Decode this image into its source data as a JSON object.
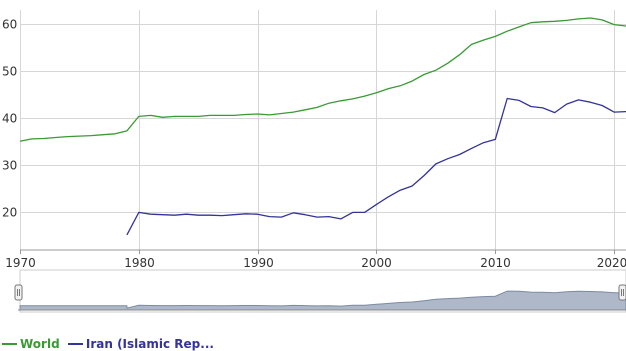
{
  "chart_data": {
    "type": "line",
    "x_ticks": [
      1970,
      1980,
      1990,
      2000,
      2010,
      2020
    ],
    "x_tick_labels": [
      "1970",
      "1980",
      "1990",
      "2000",
      "2010",
      "2020"
    ],
    "y_ticks": [
      20,
      30,
      40,
      50,
      60
    ],
    "y_tick_labels": [
      "20",
      "30",
      "40",
      "50",
      "60"
    ],
    "xlim": [
      1970,
      2021
    ],
    "ylim": [
      12,
      63
    ],
    "grid": true,
    "legend_position": "bottom-left",
    "series": [
      {
        "name": "World",
        "color": "#3a9a34",
        "x": [
          1970,
          1971,
          1972,
          1973,
          1974,
          1975,
          1976,
          1977,
          1978,
          1979,
          1980,
          1981,
          1982,
          1983,
          1984,
          1985,
          1986,
          1987,
          1988,
          1989,
          1990,
          1991,
          1992,
          1993,
          1994,
          1995,
          1996,
          1997,
          1998,
          1999,
          2000,
          2001,
          2002,
          2003,
          2004,
          2005,
          2006,
          2007,
          2008,
          2009,
          2010,
          2011,
          2012,
          2013,
          2014,
          2015,
          2016,
          2017,
          2018,
          2019,
          2020,
          2021
        ],
        "y": [
          35.1,
          35.6,
          35.7,
          35.9,
          36.1,
          36.2,
          36.3,
          36.5,
          36.7,
          37.3,
          40.4,
          40.6,
          40.2,
          40.4,
          40.4,
          40.4,
          40.6,
          40.6,
          40.6,
          40.8,
          40.9,
          40.7,
          41.0,
          41.3,
          41.8,
          42.3,
          43.2,
          43.7,
          44.1,
          44.7,
          45.4,
          46.3,
          46.9,
          47.9,
          49.3,
          50.2,
          51.7,
          53.5,
          55.7,
          56.6,
          57.4,
          58.5,
          59.4,
          60.3,
          60.5,
          60.6,
          60.8,
          61.1,
          61.3,
          60.9,
          59.9,
          59.6
        ]
      },
      {
        "name": "Iran (Islamic Rep...",
        "color": "#333399",
        "x": [
          1979,
          1980,
          1981,
          1982,
          1983,
          1984,
          1985,
          1986,
          1987,
          1988,
          1989,
          1990,
          1991,
          1992,
          1993,
          1994,
          1995,
          1996,
          1997,
          1998,
          1999,
          2000,
          2001,
          2002,
          2003,
          2004,
          2005,
          2006,
          2007,
          2008,
          2009,
          2010,
          2011,
          2012,
          2013,
          2014,
          2015,
          2016,
          2017,
          2018,
          2019,
          2020,
          2021
        ],
        "y": [
          15.2,
          20.0,
          19.6,
          19.5,
          19.4,
          19.6,
          19.4,
          19.4,
          19.3,
          19.5,
          19.7,
          19.6,
          19.1,
          19.0,
          19.9,
          19.5,
          19.0,
          19.1,
          18.6,
          20.0,
          20.0,
          21.7,
          23.3,
          24.7,
          25.6,
          27.8,
          30.3,
          31.4,
          32.3,
          33.6,
          34.8,
          35.5,
          44.2,
          43.8,
          42.5,
          42.2,
          41.2,
          43.0,
          43.9,
          43.4,
          42.7,
          41.3,
          41.4
        ]
      }
    ],
    "navigator": {
      "series": "Iran (Islamic Rep..."
    }
  },
  "legend": {
    "items": [
      {
        "label": "World",
        "color": "#3a9a34"
      },
      {
        "label": "Iran (Islamic Rep...",
        "color": "#333399"
      }
    ]
  }
}
